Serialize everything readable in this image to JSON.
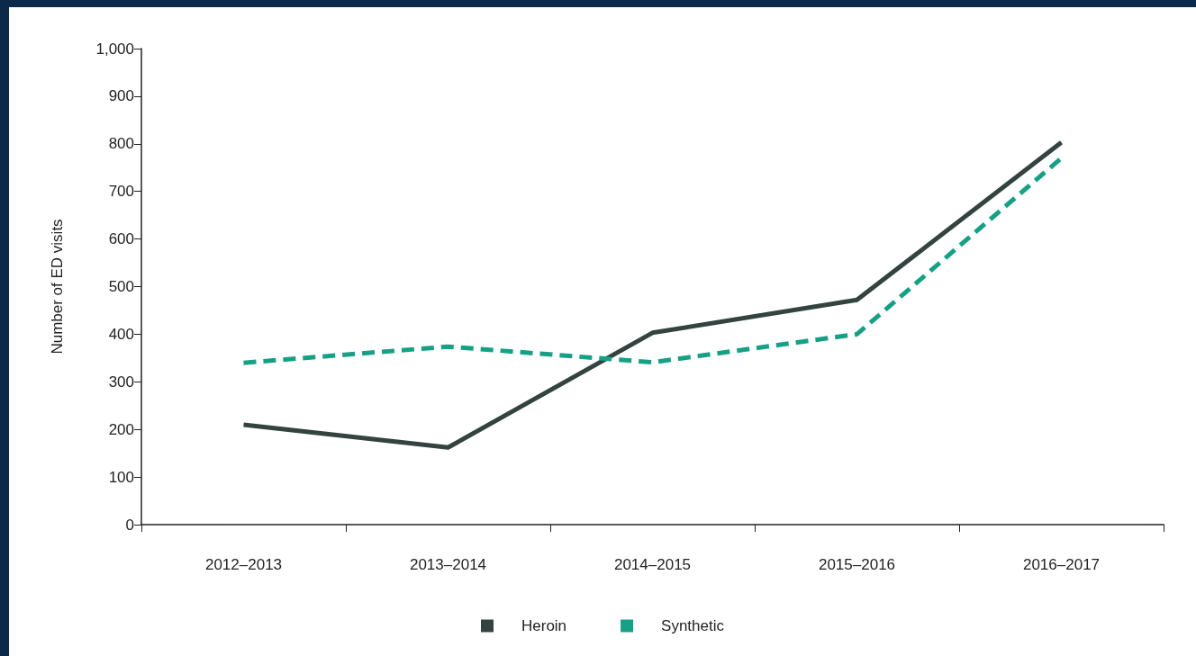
{
  "chart_data": {
    "type": "line",
    "ylabel": "Number of ED visits",
    "categories": [
      "2012–2013",
      "2013–2014",
      "2014–2015",
      "2015–2016",
      "2016–2017"
    ],
    "series": [
      {
        "name": "Heroin",
        "color": "#33433f",
        "line_style": "solid",
        "values": [
          210,
          162,
          403,
          472,
          803
        ]
      },
      {
        "name": "Synthetic",
        "color": "#16a085",
        "line_style": "dashed",
        "values": [
          340,
          374,
          341,
          400,
          770
        ]
      }
    ],
    "ylim": [
      0,
      1000
    ],
    "yticks": [
      0,
      100,
      200,
      300,
      400,
      500,
      600,
      700,
      800,
      900,
      {
        "value": 1000,
        "label": "1,000"
      }
    ],
    "grid": false,
    "legend": "bottom",
    "marker": "none"
  }
}
